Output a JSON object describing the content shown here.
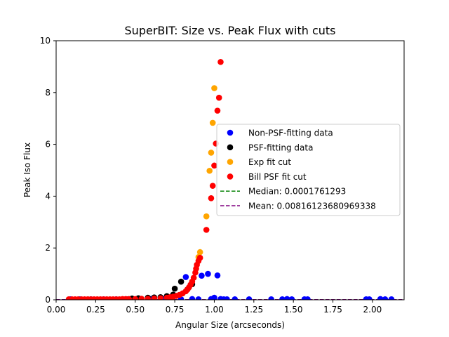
{
  "chart_data": {
    "type": "scatter",
    "title": "SuperBIT: Size vs. Peak Flux with cuts",
    "xlabel": "Angular Size (arcseconds)",
    "ylabel": "Peak Iso Flux",
    "xlim": [
      0.0,
      2.2
    ],
    "ylim": [
      0,
      10
    ],
    "xticks": [
      "0.00",
      "0.25",
      "0.50",
      "0.75",
      "1.00",
      "1.25",
      "1.50",
      "1.75",
      "2.00"
    ],
    "yticks": [
      "0",
      "2",
      "4",
      "6",
      "8",
      "10"
    ],
    "grid": false,
    "legend_position": "center-right",
    "series": [
      {
        "name": "Non-PSF-fitting data",
        "kind": "scatter",
        "color": "#0000ff",
        "points": [
          [
            0.09,
            0.02
          ],
          [
            0.15,
            0.02
          ],
          [
            0.22,
            0.02
          ],
          [
            0.3,
            0.02
          ],
          [
            0.38,
            0.02
          ],
          [
            0.45,
            0.02
          ],
          [
            0.52,
            0.02
          ],
          [
            0.6,
            0.03
          ],
          [
            0.68,
            0.03
          ],
          [
            0.79,
            0.02
          ],
          [
            0.82,
            0.88
          ],
          [
            0.86,
            0.03
          ],
          [
            0.9,
            0.02
          ],
          [
            0.92,
            0.93
          ],
          [
            0.96,
            1.0
          ],
          [
            0.98,
            0.03
          ],
          [
            1.0,
            0.08
          ],
          [
            1.02,
            0.94
          ],
          [
            1.04,
            0.03
          ],
          [
            1.06,
            0.02
          ],
          [
            1.08,
            0.02
          ],
          [
            1.13,
            0.02
          ],
          [
            1.22,
            0.02
          ],
          [
            1.36,
            0.02
          ],
          [
            1.43,
            0.02
          ],
          [
            1.46,
            0.03
          ],
          [
            1.49,
            0.02
          ],
          [
            1.57,
            0.02
          ],
          [
            1.59,
            0.02
          ],
          [
            1.96,
            0.02
          ],
          [
            1.98,
            0.02
          ],
          [
            2.05,
            0.03
          ],
          [
            2.08,
            0.02
          ],
          [
            2.12,
            0.02
          ]
        ]
      },
      {
        "name": "PSF-fitting data",
        "kind": "scatter",
        "color": "#000000",
        "points": [
          [
            0.48,
            0.05
          ],
          [
            0.52,
            0.06
          ],
          [
            0.58,
            0.08
          ],
          [
            0.62,
            0.09
          ],
          [
            0.66,
            0.1
          ],
          [
            0.7,
            0.14
          ],
          [
            0.74,
            0.2
          ],
          [
            0.75,
            0.43
          ],
          [
            0.79,
            0.7
          ],
          [
            0.83,
            0.4
          ],
          [
            0.86,
            0.6
          ]
        ]
      },
      {
        "name": "Exp fit cut",
        "kind": "scatter",
        "color": "#ffa500",
        "points": [
          [
            0.9,
            1.65
          ],
          [
            0.91,
            1.84
          ],
          [
            0.95,
            3.22
          ],
          [
            0.97,
            4.98
          ],
          [
            0.98,
            5.68
          ],
          [
            0.99,
            6.83
          ],
          [
            1.0,
            8.17
          ]
        ]
      },
      {
        "name": "Bill PSF fit cut",
        "kind": "scatter",
        "color": "#ff0000",
        "points": [
          [
            0.08,
            0.02
          ],
          [
            0.1,
            0.02
          ],
          [
            0.12,
            0.02
          ],
          [
            0.14,
            0.02
          ],
          [
            0.16,
            0.02
          ],
          [
            0.18,
            0.02
          ],
          [
            0.2,
            0.02
          ],
          [
            0.22,
            0.02
          ],
          [
            0.24,
            0.02
          ],
          [
            0.26,
            0.02
          ],
          [
            0.28,
            0.02
          ],
          [
            0.3,
            0.02
          ],
          [
            0.32,
            0.02
          ],
          [
            0.34,
            0.02
          ],
          [
            0.36,
            0.02
          ],
          [
            0.38,
            0.02
          ],
          [
            0.4,
            0.02
          ],
          [
            0.42,
            0.03
          ],
          [
            0.44,
            0.03
          ],
          [
            0.46,
            0.03
          ],
          [
            0.5,
            0.03
          ],
          [
            0.54,
            0.04
          ],
          [
            0.58,
            0.04
          ],
          [
            0.62,
            0.05
          ],
          [
            0.66,
            0.06
          ],
          [
            0.7,
            0.08
          ],
          [
            0.72,
            0.1
          ],
          [
            0.74,
            0.12
          ],
          [
            0.76,
            0.15
          ],
          [
            0.78,
            0.19
          ],
          [
            0.8,
            0.25
          ],
          [
            0.82,
            0.33
          ],
          [
            0.83,
            0.4
          ],
          [
            0.84,
            0.48
          ],
          [
            0.85,
            0.58
          ],
          [
            0.86,
            0.7
          ],
          [
            0.87,
            0.85
          ],
          [
            0.88,
            1.05
          ],
          [
            0.885,
            1.2
          ],
          [
            0.89,
            1.35
          ],
          [
            0.9,
            1.5
          ],
          [
            0.91,
            1.62
          ],
          [
            0.95,
            2.7
          ],
          [
            0.98,
            3.92
          ],
          [
            0.99,
            4.4
          ],
          [
            1.0,
            5.18
          ],
          [
            1.01,
            6.03
          ],
          [
            1.02,
            7.3
          ],
          [
            1.03,
            7.8
          ],
          [
            1.04,
            9.18
          ]
        ]
      },
      {
        "name": "Median: 0.0001761293",
        "kind": "hline",
        "color": "#008000",
        "y": 0.0001761293
      },
      {
        "name": "Mean: 0.00816123680969338",
        "kind": "hline",
        "color": "#800080",
        "y": 0.00816123680969338
      }
    ]
  }
}
